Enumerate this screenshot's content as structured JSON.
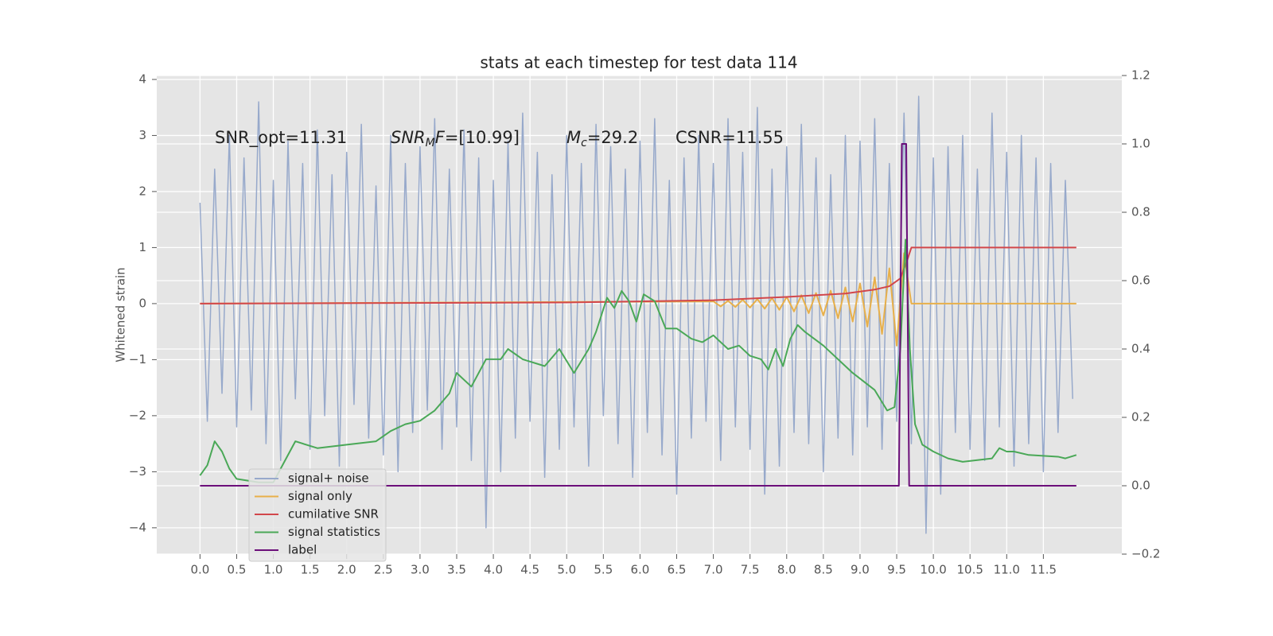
{
  "chart_data": {
    "type": "line",
    "title": "stats at each timestep for test data 114",
    "ylabel": "Whitened strain",
    "annotations": [
      "SNR_opt=11.31",
      [
        "SNR",
        "M",
        "F",
        "=[10.99]"
      ],
      [
        "M",
        "c",
        "=29.2"
      ],
      "CSNR=11.55"
    ],
    "xlim": [
      -0.59,
      12.57
    ],
    "ylim": [
      -4.47,
      4.07
    ],
    "y2lim": [
      -0.2,
      1.2
    ],
    "xticks": [
      {
        "value": 0,
        "label": "0.0"
      },
      0.5,
      {
        "value": 1,
        "label": "1.0"
      },
      1.5,
      {
        "value": 2,
        "label": "2.0"
      },
      2.5,
      {
        "value": 3,
        "label": "3.0"
      },
      3.5,
      {
        "value": 4,
        "label": "4.0"
      },
      4.5,
      {
        "value": 5,
        "label": "5.0"
      },
      5.5,
      {
        "value": 6,
        "label": "6.0"
      },
      6.5,
      {
        "value": 7,
        "label": "7.0"
      },
      7.5,
      {
        "value": 8,
        "label": "8.0"
      },
      8.5,
      {
        "value": 9,
        "label": "9.0"
      },
      9.5,
      {
        "value": 10,
        "label": "10.0"
      },
      10.5,
      {
        "value": 11,
        "label": "11.0"
      },
      11.5
    ],
    "yticks": [
      {
        "value": -4,
        "label": "−4"
      },
      {
        "value": -3,
        "label": "−3"
      },
      {
        "value": -2,
        "label": "−2"
      },
      {
        "value": -1,
        "label": "−1"
      },
      0,
      1,
      2,
      3,
      4
    ],
    "y2ticks": [
      {
        "value": -0.2,
        "label": "−0.2"
      },
      {
        "value": 0,
        "label": "0.0"
      },
      0.2,
      0.4,
      0.6,
      0.8,
      {
        "value": 1,
        "label": "1.0"
      },
      1.2
    ],
    "grid": true,
    "legend": "lower left",
    "series": [
      {
        "name": "signal+ noise",
        "color": "#97a9cb",
        "x": [
          0,
          0.1,
          0.2,
          0.3,
          0.4,
          0.5,
          0.6,
          0.7,
          0.8,
          0.9,
          1,
          1.1,
          1.2,
          1.3,
          1.4,
          1.5,
          1.6,
          1.7,
          1.8,
          1.9,
          2,
          2.1,
          2.2,
          2.3,
          2.4,
          2.5,
          2.6,
          2.7,
          2.8,
          2.9,
          3,
          3.1,
          3.2,
          3.3,
          3.4,
          3.5,
          3.6,
          3.7,
          3.8,
          3.9,
          4,
          4.1,
          4.2,
          4.3,
          4.4,
          4.5,
          4.6,
          4.7,
          4.8,
          4.9,
          5,
          5.1,
          5.2,
          5.3,
          5.4,
          5.5,
          5.6,
          5.7,
          5.8,
          5.9,
          6,
          6.1,
          6.2,
          6.3,
          6.4,
          6.5,
          6.6,
          6.7,
          6.8,
          6.9,
          7,
          7.1,
          7.2,
          7.3,
          7.4,
          7.5,
          7.6,
          7.7,
          7.8,
          7.9,
          8,
          8.1,
          8.2,
          8.3,
          8.4,
          8.5,
          8.6,
          8.7,
          8.8,
          8.9,
          9,
          9.1,
          9.2,
          9.3,
          9.4,
          9.5,
          9.6,
          9.7,
          9.8,
          9.9,
          10,
          10.1,
          10.2,
          10.3,
          10.4,
          10.5,
          10.6,
          10.7,
          10.8,
          10.9,
          11,
          11.1,
          11.2,
          11.3,
          11.4,
          11.5,
          11.6,
          11.7,
          11.8,
          11.9
        ],
        "values": [
          1.8,
          -2.1,
          2.4,
          -1.6,
          3.0,
          -2.2,
          2.6,
          -1.9,
          3.6,
          -2.5,
          2.2,
          -2.8,
          2.9,
          -1.7,
          2.5,
          -2.6,
          3.1,
          -2.0,
          2.3,
          -2.9,
          2.7,
          -1.8,
          3.2,
          -2.4,
          2.1,
          -2.7,
          3.0,
          -3.0,
          2.5,
          -2.3,
          2.8,
          -1.9,
          3.3,
          -2.6,
          2.4,
          -2.2,
          3.1,
          -2.8,
          2.6,
          -4.0,
          2.2,
          -3.0,
          2.9,
          -2.4,
          3.4,
          -2.1,
          2.7,
          -3.1,
          2.3,
          -2.6,
          3.0,
          -2.2,
          2.5,
          -2.9,
          3.2,
          -2.0,
          2.8,
          -2.5,
          2.4,
          -3.1,
          2.9,
          -2.3,
          3.3,
          -2.7,
          2.2,
          -3.4,
          2.6,
          -2.4,
          3.0,
          -2.1,
          2.5,
          -2.8,
          3.3,
          -2.2,
          2.7,
          -2.6,
          3.5,
          -3.4,
          2.4,
          -2.9,
          2.8,
          -2.3,
          3.2,
          -2.5,
          2.6,
          -3.0,
          2.3,
          -2.4,
          3.0,
          -2.7,
          2.9,
          -2.2,
          3.3,
          -2.6,
          2.5,
          -2.1,
          3.4,
          -2.5,
          3.7,
          -4.1,
          2.6,
          -3.4,
          2.8,
          -2.3,
          3.0,
          -2.6,
          2.4,
          -2.8,
          3.4,
          -2.2,
          2.7,
          -2.9,
          3.0,
          -2.5,
          2.6,
          -3.0,
          2.5,
          -2.3,
          2.2,
          -1.7
        ]
      },
      {
        "name": "signal only",
        "color": "#e8b04a",
        "x": [
          0,
          7,
          7.1,
          7.2,
          7.3,
          7.4,
          7.5,
          7.6,
          7.7,
          7.8,
          7.9,
          8,
          8.1,
          8.2,
          8.3,
          8.4,
          8.5,
          8.6,
          8.7,
          8.8,
          8.9,
          9,
          9.1,
          9.2,
          9.3,
          9.4,
          9.5,
          9.6,
          9.7,
          11.95
        ],
        "values": [
          0,
          0.04,
          -0.05,
          0.05,
          -0.06,
          0.07,
          -0.07,
          0.08,
          -0.09,
          0.1,
          -0.11,
          0.12,
          -0.14,
          0.15,
          -0.17,
          0.19,
          -0.21,
          0.23,
          -0.26,
          0.29,
          -0.32,
          0.36,
          -0.41,
          0.47,
          -0.54,
          0.63,
          -0.75,
          0.9,
          0,
          0
        ]
      },
      {
        "name": "cumilative SNR",
        "color": "#d2474b",
        "x": [
          0,
          5,
          7,
          8,
          8.8,
          9.2,
          9.4,
          9.55,
          9.65,
          9.7,
          11.95
        ],
        "values": [
          0,
          0.02,
          0.06,
          0.12,
          0.18,
          0.25,
          0.31,
          0.45,
          0.8,
          1.0,
          1.0
        ]
      },
      {
        "name": "signal statistics",
        "color": "#4aa857",
        "axis": "y2",
        "x": [
          0,
          0.1,
          0.2,
          0.3,
          0.4,
          0.5,
          0.8,
          1.0,
          1.15,
          1.3,
          1.6,
          2.0,
          2.4,
          2.6,
          2.8,
          3.0,
          3.2,
          3.4,
          3.5,
          3.7,
          3.9,
          4.1,
          4.2,
          4.4,
          4.7,
          4.9,
          5.1,
          5.3,
          5.4,
          5.55,
          5.65,
          5.75,
          5.85,
          5.95,
          6.05,
          6.2,
          6.35,
          6.5,
          6.7,
          6.85,
          7.0,
          7.2,
          7.35,
          7.5,
          7.65,
          7.75,
          7.85,
          7.95,
          8.05,
          8.15,
          8.25,
          8.5,
          8.9,
          9.2,
          9.37,
          9.47,
          9.55,
          9.62,
          9.68,
          9.75,
          9.85,
          10.0,
          10.2,
          10.4,
          10.8,
          10.9,
          11.0,
          11.1,
          11.3,
          11.7,
          11.8,
          11.95
        ],
        "values": [
          0.03,
          0.06,
          0.13,
          0.1,
          0.05,
          0.02,
          0.01,
          0.01,
          0.07,
          0.13,
          0.11,
          0.12,
          0.13,
          0.16,
          0.18,
          0.19,
          0.22,
          0.27,
          0.33,
          0.29,
          0.37,
          0.37,
          0.4,
          0.37,
          0.35,
          0.4,
          0.33,
          0.4,
          0.45,
          0.55,
          0.52,
          0.57,
          0.54,
          0.48,
          0.56,
          0.54,
          0.46,
          0.46,
          0.43,
          0.42,
          0.44,
          0.4,
          0.41,
          0.38,
          0.37,
          0.34,
          0.4,
          0.35,
          0.43,
          0.47,
          0.45,
          0.41,
          0.33,
          0.28,
          0.22,
          0.23,
          0.4,
          0.72,
          0.4,
          0.18,
          0.12,
          0.1,
          0.08,
          0.07,
          0.08,
          0.11,
          0.1,
          0.1,
          0.09,
          0.085,
          0.08,
          0.09
        ]
      },
      {
        "name": "label",
        "color": "#6c0f7a",
        "axis": "y2",
        "x": [
          0,
          9.53,
          9.57,
          9.63,
          9.67,
          11.95
        ],
        "values": [
          0,
          0,
          1,
          1,
          0,
          0
        ]
      }
    ]
  }
}
